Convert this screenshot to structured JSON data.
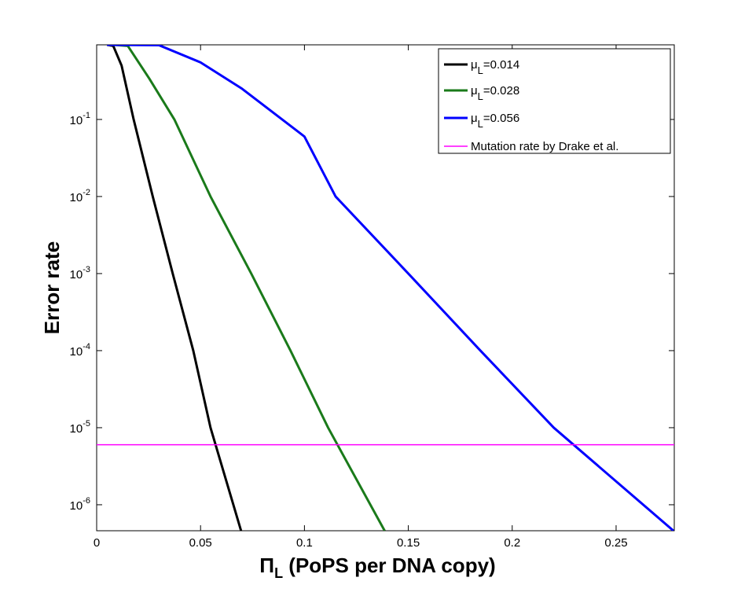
{
  "chart_data": {
    "type": "line",
    "x_label": "ΠL (PoPS per DNA copy)",
    "y_label": "Error rate",
    "log_y": true,
    "grid": false,
    "legend": "top-right",
    "xlim": [
      0,
      0.278
    ],
    "ylim": [
      4.6e-07,
      0.93
    ],
    "xticks": [
      0,
      0.05,
      0.1,
      0.15,
      0.2,
      0.25
    ],
    "yticks": [
      {
        "value": 1e-06,
        "label": "10-6"
      },
      {
        "value": 1e-05,
        "label": "10-5"
      },
      {
        "value": 0.0001,
        "label": "10-4"
      },
      {
        "value": 0.001,
        "label": "10-3"
      },
      {
        "value": 0.01,
        "label": "10-2"
      },
      {
        "value": 0.1,
        "label": "10-1"
      }
    ],
    "series": [
      {
        "name": "μL=0.014",
        "color": "#000000",
        "width": 3,
        "x": [
          0.005,
          0.008,
          0.012,
          0.0178,
          0.027,
          0.0366,
          0.0465,
          0.0548,
          0.0695
        ],
        "values": [
          0.93,
          0.9,
          0.5,
          0.1,
          0.01,
          0.001,
          0.0001,
          1e-05,
          4.6e-07
        ]
      },
      {
        "name": "μL=0.028",
        "color": "#1a7a1a",
        "width": 3,
        "x": [
          0.008,
          0.015,
          0.0253,
          0.0374,
          0.0548,
          0.0744,
          0.0933,
          0.1114,
          0.1386
        ],
        "values": [
          0.93,
          0.9,
          0.34,
          0.1,
          0.01,
          0.001,
          0.0001,
          1e-05,
          4.6e-07
        ]
      },
      {
        "name": "μL=0.056",
        "color": "#0000ff",
        "width": 3,
        "x": [
          0.005,
          0.03,
          0.05,
          0.07,
          0.1,
          0.115,
          0.15,
          0.1847,
          0.22,
          0.2776
        ],
        "values": [
          0.93,
          0.92,
          0.55,
          0.25,
          0.06,
          0.01,
          0.001,
          0.0001,
          1e-05,
          4.6e-07
        ]
      },
      {
        "name": "Mutation rate by Drake et al.",
        "color": "#ff00ff",
        "width": 1.5,
        "x": [
          0,
          0.278
        ],
        "values": [
          6e-06,
          6e-06
        ]
      }
    ]
  }
}
